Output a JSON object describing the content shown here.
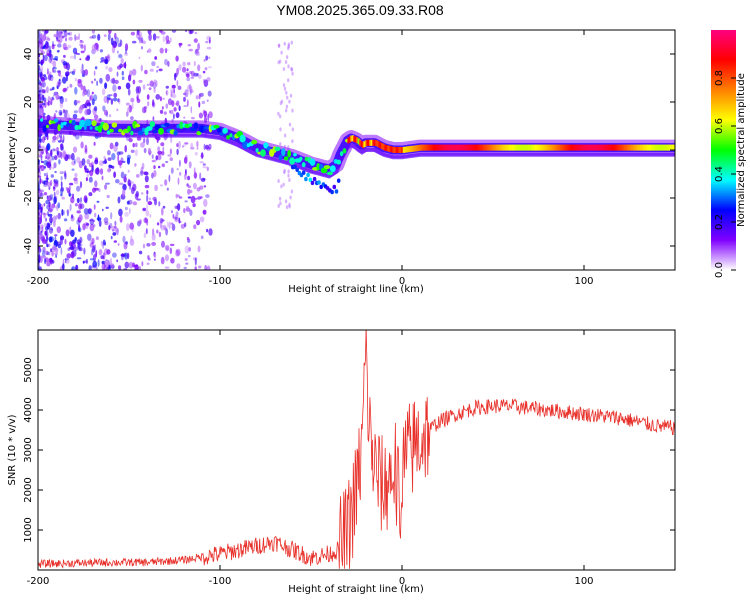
{
  "title": "YM08.2025.365.09.33.R08",
  "chart_data": [
    {
      "type": "heatmap",
      "xlabel": "Height of straight line (km)",
      "ylabel": "Frequency (Hz)",
      "xlim": [
        -200,
        150
      ],
      "ylim": [
        -50,
        50
      ],
      "x_ticks": [
        -200,
        -100,
        0,
        100
      ],
      "y_ticks": [
        -40,
        -20,
        0,
        20,
        40
      ],
      "colorbar": {
        "label": "Normalized spectral amplitude",
        "range": [
          0.0,
          1.0
        ],
        "ticks": [
          "0.0",
          "0.2",
          "0.4",
          "0.6",
          "0.8"
        ],
        "colors": [
          "#ffffff",
          "#8000ff",
          "#0000ff",
          "#00ffff",
          "#00ff00",
          "#ffff00",
          "#ff8000",
          "#ff0000",
          "#ff0080"
        ]
      },
      "ridge": {
        "x": [
          -200,
          -180,
          -160,
          -140,
          -120,
          -110,
          -100,
          -90,
          -80,
          -70,
          -60,
          -50,
          -45,
          -40,
          -36,
          -34,
          -30,
          -28,
          -25,
          -22,
          -20,
          -15,
          -10,
          -5,
          0,
          10,
          30,
          60,
          100,
          150
        ],
        "y": [
          11,
          10,
          9,
          9,
          9,
          9,
          8,
          5,
          1,
          -1,
          -3,
          -6,
          -7,
          -8,
          -6,
          -2,
          4,
          5,
          4,
          2,
          3,
          3,
          1,
          0,
          0,
          1,
          1,
          1,
          1,
          1
        ]
      }
    },
    {
      "type": "line",
      "xlabel": "Height of straight line (km)",
      "ylabel": "SNR (10 * v/v)",
      "xlim": [
        -200,
        150
      ],
      "ylim": [
        0,
        6000
      ],
      "x_ticks": [
        -200,
        -100,
        0,
        100
      ],
      "y_ticks": [
        1000,
        2000,
        3000,
        4000,
        5000
      ],
      "series": [
        {
          "color": "#e8302a",
          "x": [
            -200,
            -180,
            -160,
            -140,
            -120,
            -100,
            -90,
            -80,
            -70,
            -60,
            -50,
            -40,
            -35,
            -30,
            -25,
            -22,
            -20,
            -18,
            -15,
            -10,
            -5,
            0,
            5,
            10,
            20,
            30,
            40,
            50,
            60,
            70,
            80,
            100,
            120,
            140,
            150
          ],
          "y": [
            150,
            170,
            190,
            190,
            250,
            400,
            500,
            600,
            700,
            500,
            300,
            400,
            500,
            900,
            2000,
            3000,
            5500,
            3500,
            2500,
            2000,
            2500,
            2700,
            3000,
            3300,
            3700,
            3900,
            4050,
            4100,
            4100,
            4050,
            4000,
            3900,
            3800,
            3600,
            3550
          ]
        }
      ]
    }
  ]
}
